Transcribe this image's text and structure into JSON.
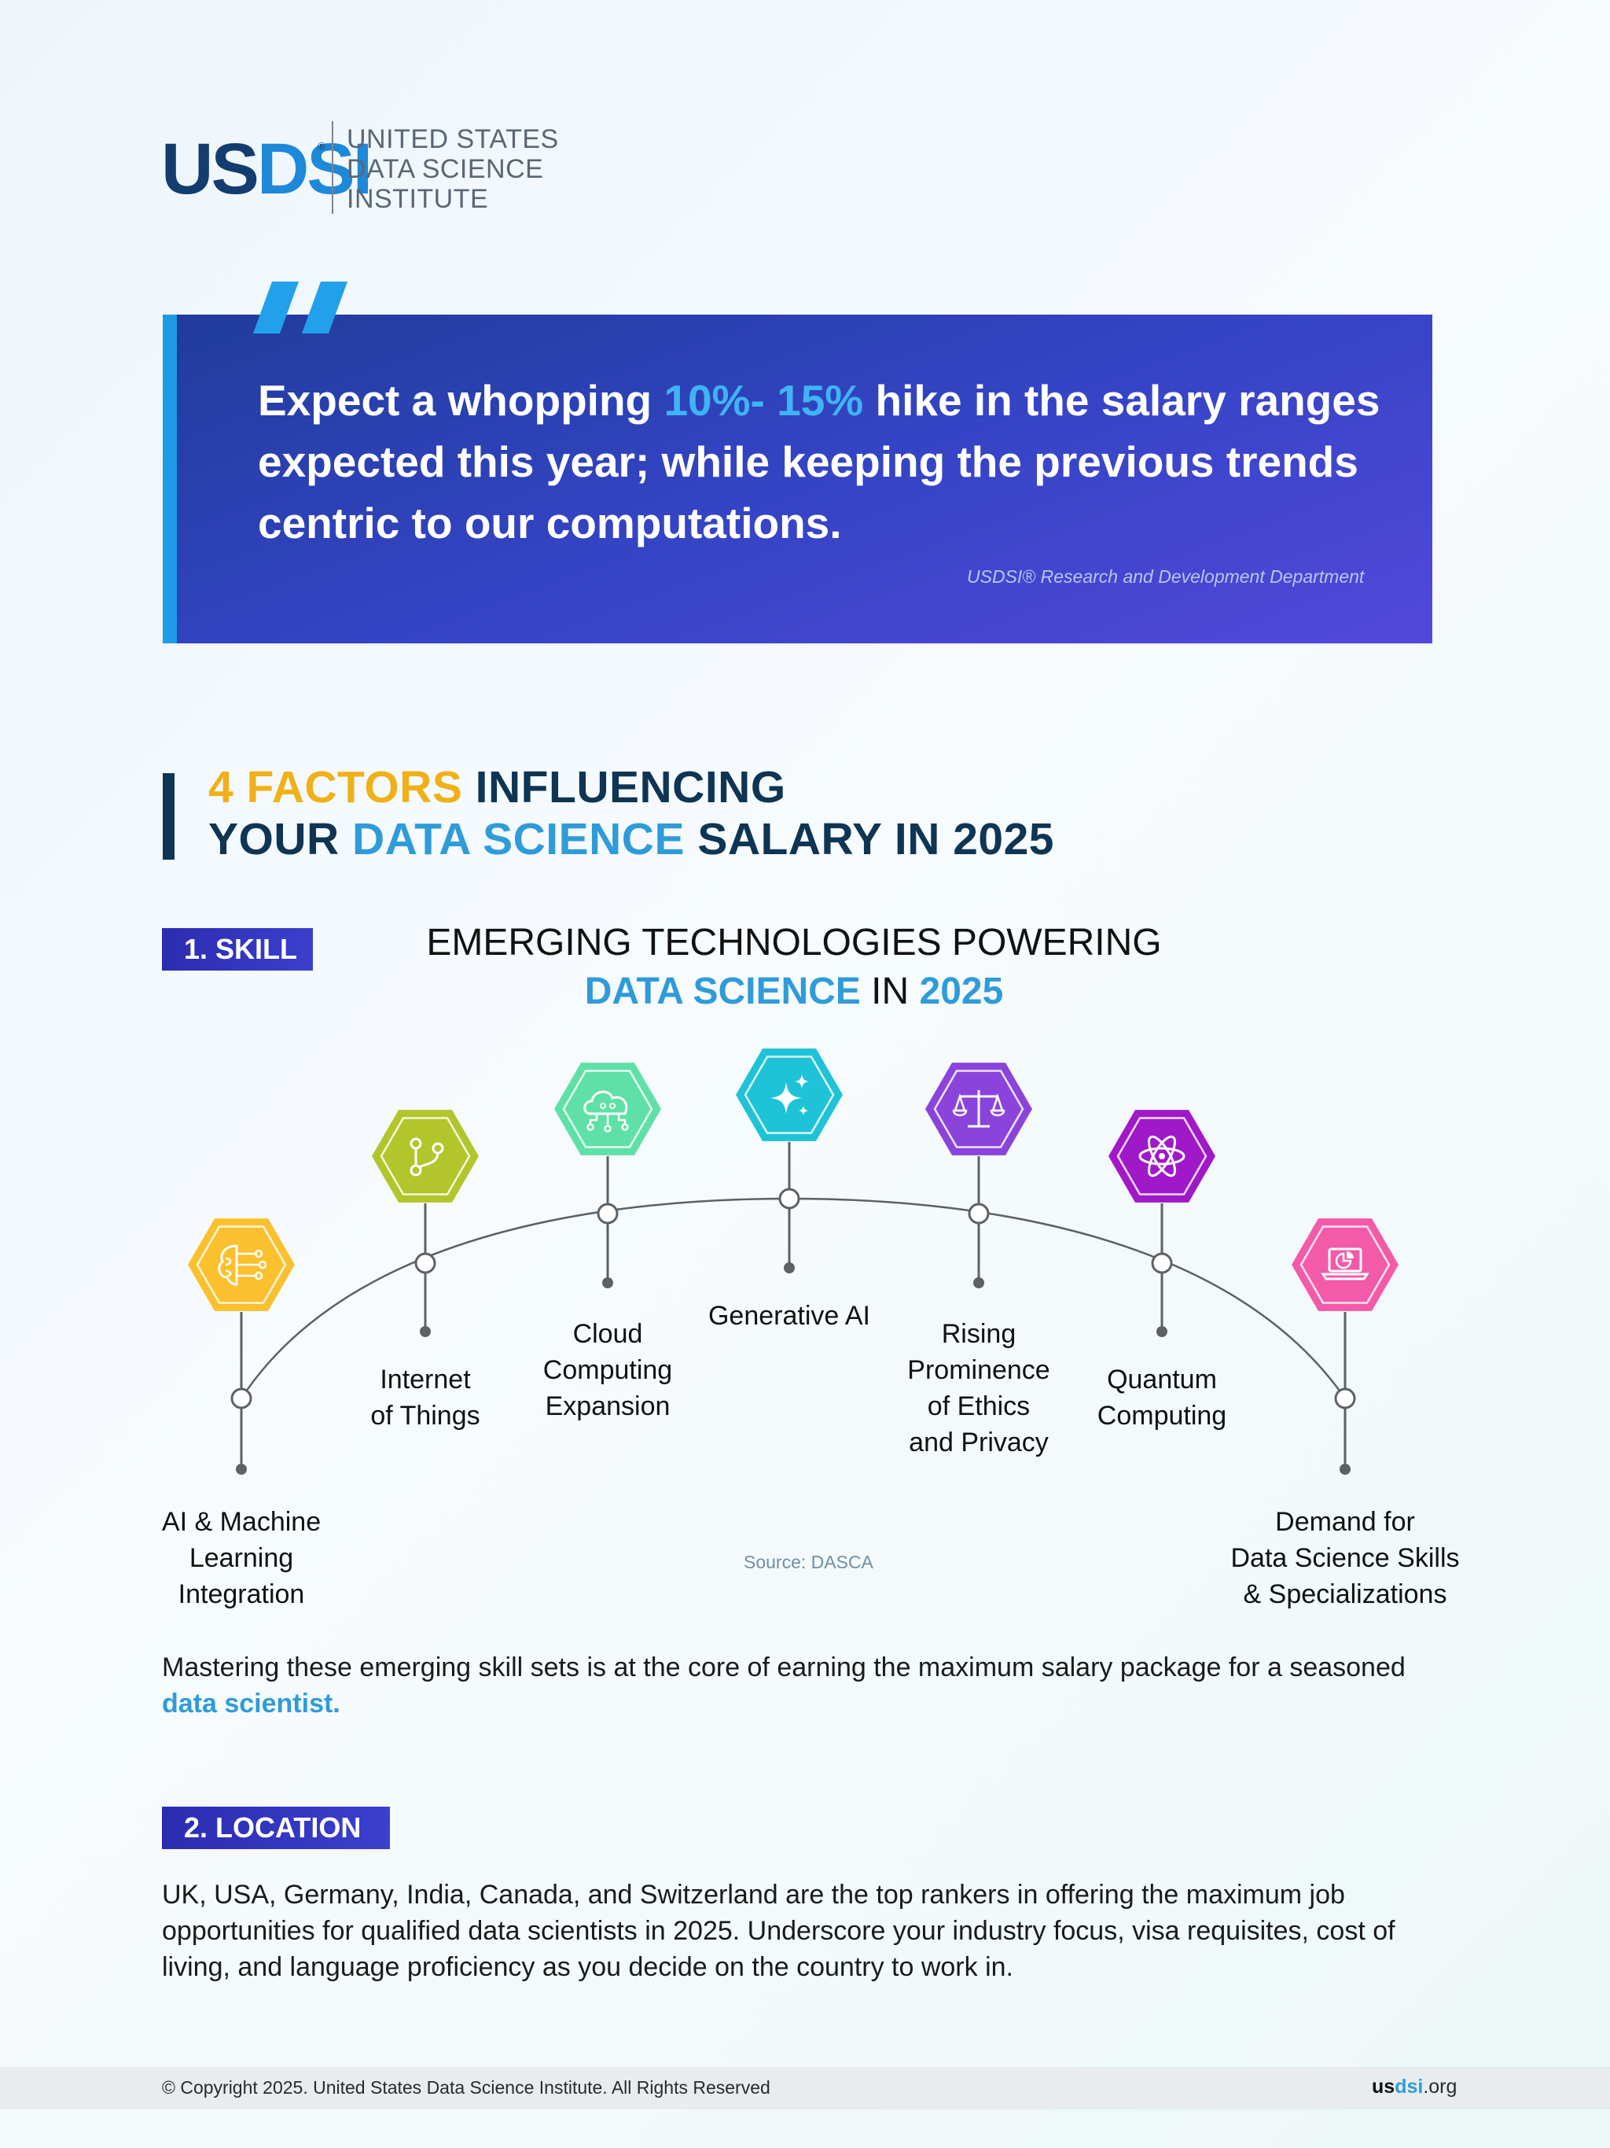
{
  "logo": {
    "mark_us": "US",
    "mark_dsi": "DSI",
    "registered": "®",
    "line1": "UNITED STATES",
    "line2": "DATA SCIENCE",
    "line3": "INSTITUTE"
  },
  "quote": {
    "part1": "Expect a whopping ",
    "highlight": "10%- 15%",
    "part2": " hike in the salary ranges expected this year; while keeping the previous trends centric to our computations.",
    "source": "USDSI® Research and Development Department"
  },
  "heading": {
    "line1_accent": "4 FACTORS",
    "line1_rest": " INFLUENCING",
    "line2_start": "YOUR ",
    "line2_accent": "DATA SCIENCE",
    "line2_rest": " SALARY IN 2025"
  },
  "skill": {
    "badge": "1. SKILL",
    "title_line1": "EMERGING TECHNOLOGIES POWERING",
    "title_accent1": "DATA SCIENCE",
    "title_mid": " IN ",
    "title_accent2": "2025",
    "items": [
      {
        "label_lines": [
          "AI & Machine",
          "Learning",
          "Integration"
        ],
        "icon": "brain-circuit-icon",
        "color": "#fbc02d"
      },
      {
        "label_lines": [
          "Internet",
          "of Things"
        ],
        "icon": "network-nodes-icon",
        "color": "#b2c62b"
      },
      {
        "label_lines": [
          "Cloud",
          "Computing",
          "Expansion"
        ],
        "icon": "cloud-network-icon",
        "color": "#5fe0a6"
      },
      {
        "label_lines": [
          "Generative AI"
        ],
        "icon": "sparkles-icon",
        "color": "#1fc3d8"
      },
      {
        "label_lines": [
          "Rising",
          "Prominence",
          "of Ethics",
          "and Privacy"
        ],
        "icon": "balance-scale-icon",
        "color": "#8a44dc"
      },
      {
        "label_lines": [
          "Quantum",
          "Computing"
        ],
        "icon": "atom-icon",
        "color": "#a019c8"
      },
      {
        "label_lines": [
          "Demand for",
          "Data Science Skills",
          "& Specializations"
        ],
        "icon": "laptop-chart-icon",
        "color": "#f35aa8"
      }
    ],
    "source": "Source: DASCA",
    "paragraph_text": "Mastering these emerging skill sets is at the core of earning the maximum salary package for a seasoned ",
    "paragraph_link": "data scientist."
  },
  "location": {
    "badge": "2. LOCATION",
    "paragraph": "UK, USA, Germany, India, Canada, and Switzerland are the top rankers in offering the maximum job opportunities for qualified data scientists in 2025. Underscore your industry focus, visa requisites, cost of living, and language proficiency as you decide on the country to work in."
  },
  "footer": {
    "copyright": "© Copyright 2025. United States Data Science Institute. All Rights Reserved",
    "site_accent1": "us",
    "site_accent2": "dsi",
    "site_rest": ".org"
  }
}
